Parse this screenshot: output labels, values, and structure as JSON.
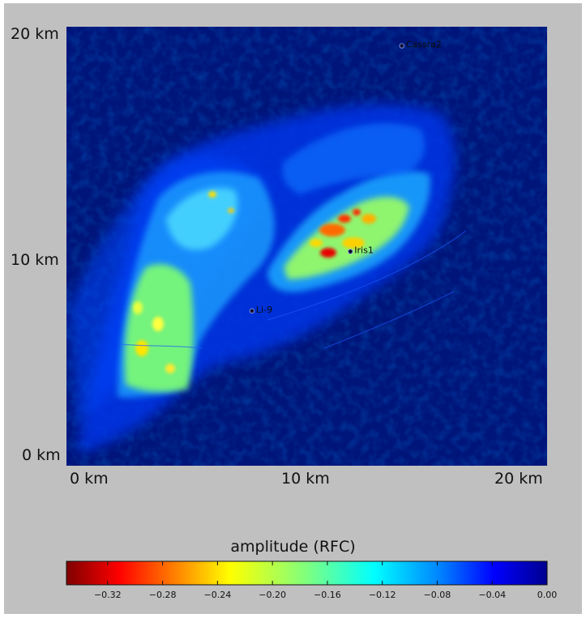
{
  "map": {
    "y_ticks": [
      "20 km",
      "10 km",
      "0 km"
    ],
    "x_ticks": [
      "0 km",
      "10 km",
      "20 km"
    ],
    "wells": [
      {
        "name": "Cassra2",
        "x_km": 15.0,
        "y_km": 19.8
      },
      {
        "name": "Iris1",
        "x_km": 12.7,
        "y_km": 10.1
      },
      {
        "name": "Li-9",
        "x_km": 8.3,
        "y_km": 7.3
      }
    ]
  },
  "colorbar": {
    "title": "amplitude (RFC)",
    "min": -0.35,
    "max": 0.0,
    "tick_labels": [
      "−0.32",
      "−0.28",
      "−0.24",
      "−0.20",
      "−0.16",
      "−0.12",
      "−0.08",
      "−0.04",
      "0.00"
    ],
    "tick_values": [
      -0.32,
      -0.28,
      -0.24,
      -0.2,
      -0.16,
      -0.12,
      -0.08,
      -0.04,
      0.0
    ],
    "colors": [
      "#7f0000",
      "#ff0000",
      "#ff8000",
      "#ffff00",
      "#80ff80",
      "#00ffff",
      "#0080ff",
      "#0000ff",
      "#00008f"
    ]
  }
}
